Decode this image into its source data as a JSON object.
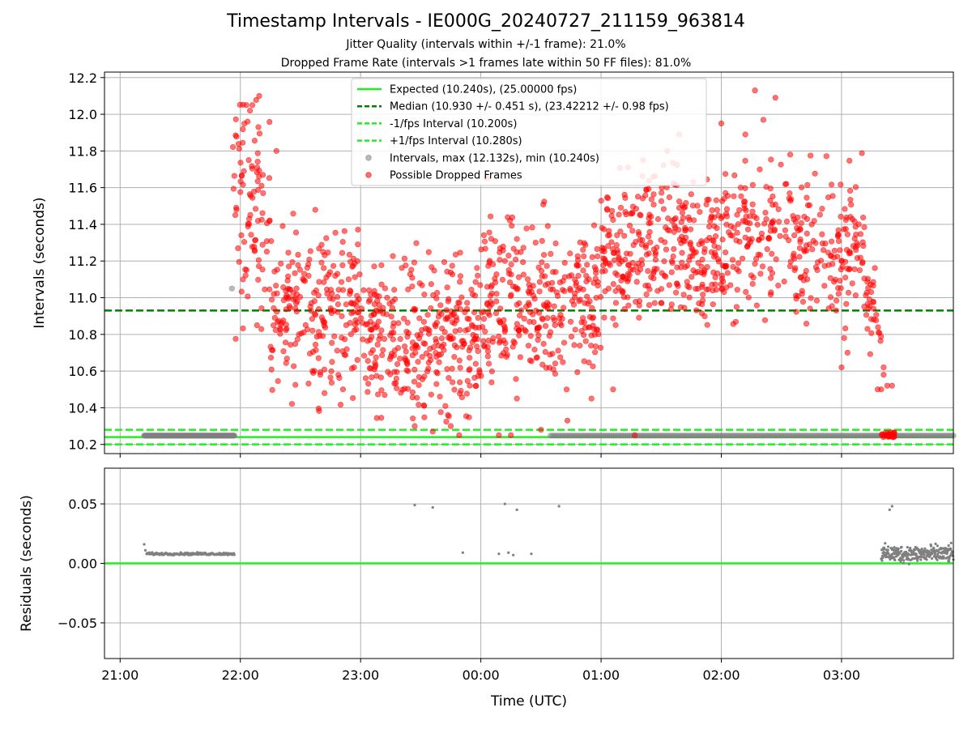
{
  "title": "Timestamp Intervals - IE000G_20240727_211159_963814",
  "subtitle_1": "Jitter Quality (intervals within +/-1 frame): 21.0%",
  "subtitle_2": "Dropped Frame Rate (intervals >1 frames late within 50 FF files): 81.0%",
  "colors": {
    "expected": "#22ee22",
    "median": "#008000",
    "fps_band": "#22ee22",
    "intervals": "#808080",
    "dropped": "#ff0000",
    "grid": "#b0b0b0"
  },
  "chart_data": [
    {
      "id": "intervals-panel",
      "type": "scatter",
      "ylabel": "Intervals (seconds)",
      "xlabel": "",
      "grid": true,
      "legend_position": "top-center",
      "x_unit": "hours since 21:00 UTC",
      "xlim": [
        -0.13,
        6.93
      ],
      "ylim": [
        10.15,
        12.23
      ],
      "x_ticks": [
        0,
        1,
        2,
        3,
        4,
        5,
        6
      ],
      "y_ticks": [
        10.2,
        10.4,
        10.6,
        10.8,
        11.0,
        11.2,
        11.4,
        11.6,
        11.8,
        12.0,
        12.2
      ],
      "y_tick_labels": [
        "10.2",
        "10.4",
        "10.6",
        "10.8",
        "11.0",
        "11.2",
        "11.4",
        "11.6",
        "11.8",
        "12.0",
        "12.2"
      ],
      "lines": [
        {
          "name": "Expected (10.240s), (25.00000 fps)",
          "y": 10.24,
          "style": "solid",
          "color": "#22ee22"
        },
        {
          "name": "Median (10.930 +/- 0.451 s), (23.42212 +/- 0.98 fps)",
          "y": 10.93,
          "style": "dashed",
          "color": "#008000"
        },
        {
          "name": "-1/fps Interval (10.200s)",
          "y": 10.2,
          "style": "dashed",
          "color": "#22ee22"
        },
        {
          "name": "+1/fps Interval (10.280s)",
          "y": 10.28,
          "style": "dashed",
          "color": "#22ee22"
        }
      ],
      "legend": [
        {
          "label": "Expected (10.240s), (25.00000 fps)",
          "kind": "line-solid",
          "color": "#22ee22"
        },
        {
          "label": "Median (10.930 +/- 0.451 s), (23.42212 +/- 0.98 fps)",
          "kind": "line-dashed",
          "color": "#008000"
        },
        {
          "label": "-1/fps Interval (10.200s)",
          "kind": "line-dashed",
          "color": "#22ee22"
        },
        {
          "label": "+1/fps Interval (10.280s)",
          "kind": "line-dashed",
          "color": "#22ee22"
        },
        {
          "label": "Intervals, max (12.132s), min (10.240s)",
          "kind": "marker",
          "color": "#808080"
        },
        {
          "label": "Possible Dropped Frames",
          "kind": "marker",
          "color": "#ff0000"
        }
      ],
      "series": [
        {
          "name": "Intervals",
          "color": "#808080",
          "segments": [
            {
              "x_start": 0.2,
              "x_end": 0.95,
              "y": 10.248,
              "count": 170
            },
            {
              "x_start": 3.58,
              "x_end": 6.93,
              "y": 10.248,
              "count": 200
            }
          ],
          "points": [
            [
              0.93,
              11.05
            ]
          ]
        },
        {
          "name": "Possible Dropped Frames",
          "color": "#ff0000",
          "clusters": [
            {
              "x_start": 0.93,
              "x_end": 1.25,
              "center": 11.45,
              "spread": 0.3,
              "count": 90
            },
            {
              "x_start": 1.25,
              "x_end": 2.0,
              "center": 10.95,
              "spread": 0.22,
              "count": 220
            },
            {
              "x_start": 2.0,
              "x_end": 3.0,
              "center": 10.78,
              "spread": 0.2,
              "count": 320
            },
            {
              "x_start": 3.0,
              "x_end": 4.0,
              "center": 10.95,
              "spread": 0.22,
              "count": 300
            },
            {
              "x_start": 4.0,
              "x_end": 5.0,
              "center": 11.28,
              "spread": 0.2,
              "count": 320
            },
            {
              "x_start": 5.0,
              "x_end": 6.2,
              "center": 11.3,
              "spread": 0.2,
              "count": 300
            },
            {
              "x_start": 6.2,
              "x_end": 6.33,
              "center": 10.95,
              "spread": 0.12,
              "count": 30
            },
            {
              "x_start": 6.33,
              "x_end": 6.45,
              "center": 10.25,
              "spread": 0.01,
              "count": 25
            }
          ],
          "points": [
            [
              1.05,
              12.05
            ],
            [
              1.1,
              12.05
            ],
            [
              1.08,
              12.02
            ],
            [
              1.06,
              11.96
            ],
            [
              1.15,
              11.93
            ],
            [
              1.3,
              11.8
            ],
            [
              5.28,
              12.13
            ],
            [
              5.45,
              12.09
            ],
            [
              5.35,
              11.97
            ],
            [
              5.2,
              11.89
            ],
            [
              5.0,
              11.95
            ],
            [
              4.65,
              11.89
            ],
            [
              3.05,
              11.65
            ],
            [
              3.3,
              11.32
            ],
            [
              3.2,
              11.2
            ],
            [
              3.6,
              11.14
            ],
            [
              4.35,
              11.75
            ],
            [
              4.55,
              11.8
            ],
            [
              1.6,
              10.6
            ],
            [
              1.7,
              10.48
            ],
            [
              2.2,
              10.47
            ],
            [
              2.45,
              10.3
            ],
            [
              2.6,
              10.27
            ],
            [
              2.75,
              10.3
            ],
            [
              2.82,
              10.25
            ],
            [
              3.15,
              10.25
            ],
            [
              3.25,
              10.25
            ],
            [
              3.5,
              10.28
            ],
            [
              3.3,
              10.45
            ],
            [
              3.72,
              10.33
            ],
            [
              4.1,
              10.5
            ],
            [
              4.28,
              10.25
            ],
            [
              3.92,
              10.45
            ],
            [
              6.05,
              10.7
            ],
            [
              6.0,
              10.62
            ],
            [
              6.35,
              10.58
            ],
            [
              6.35,
              10.62
            ],
            [
              6.38,
              10.52
            ],
            [
              6.42,
              10.52
            ],
            [
              6.3,
              10.5
            ],
            [
              6.33,
              10.5
            ]
          ]
        }
      ]
    },
    {
      "id": "residuals-panel",
      "type": "scatter",
      "xlabel": "Time (UTC)",
      "ylabel": "Residuals (seconds)",
      "grid": true,
      "x_unit": "hours since 21:00 UTC",
      "xlim": [
        -0.13,
        6.93
      ],
      "ylim": [
        -0.08,
        0.08
      ],
      "x_ticks": [
        0,
        1,
        2,
        3,
        4,
        5,
        6
      ],
      "x_tick_labels": [
        "21:00",
        "22:00",
        "23:00",
        "00:00",
        "01:00",
        "02:00",
        "03:00"
      ],
      "y_ticks": [
        -0.05,
        0.0,
        0.05
      ],
      "y_tick_labels": [
        "−0.05",
        "0.00",
        "0.05"
      ],
      "lines": [
        {
          "name": "zero",
          "y": 0.0,
          "style": "solid",
          "color": "#22ee22"
        }
      ],
      "series": [
        {
          "name": "Residuals",
          "color": "#808080",
          "segments": [
            {
              "x_start": 0.22,
              "x_end": 0.95,
              "y": 0.008,
              "count": 160,
              "spread": 0.0005
            },
            {
              "x_start": 6.33,
              "x_end": 6.93,
              "y": 0.008,
              "count": 260,
              "spread": 0.0035
            }
          ],
          "points": [
            [
              0.2,
              0.016
            ],
            [
              0.21,
              0.011
            ],
            [
              2.45,
              0.049
            ],
            [
              2.6,
              0.047
            ],
            [
              2.85,
              0.009
            ],
            [
              3.2,
              0.05
            ],
            [
              3.3,
              0.045
            ],
            [
              3.65,
              0.048
            ],
            [
              3.15,
              0.008
            ],
            [
              3.23,
              0.009
            ],
            [
              3.27,
              0.007
            ],
            [
              3.42,
              0.008
            ],
            [
              6.4,
              0.045
            ],
            [
              6.42,
              0.048
            ]
          ]
        }
      ]
    }
  ]
}
